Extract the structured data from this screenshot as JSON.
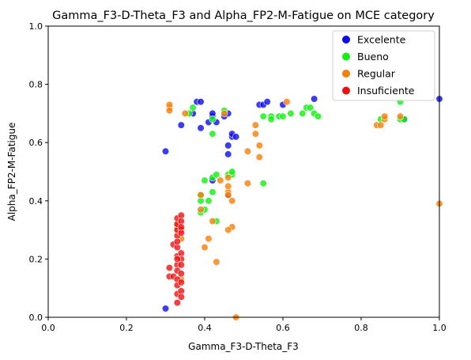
{
  "chart_data": {
    "type": "scatter",
    "title": "Gamma_F3-D-Theta_F3 and Alpha_FP2-M-Fatigue on MCE category",
    "xlabel": "Gamma_F3-D-Theta_F3",
    "ylabel": "Alpha_FP2-M-Fatigue",
    "xlim": [
      0,
      1
    ],
    "ylim": [
      0,
      1
    ],
    "xticks": [
      "0.0",
      "0.2",
      "0.4",
      "0.6",
      "0.8",
      "1.0"
    ],
    "yticks": [
      "0.0",
      "0.2",
      "0.4",
      "0.6",
      "0.8",
      "1.0"
    ],
    "grid": false,
    "legend_position": "top-right",
    "series": [
      {
        "name": "Excelente",
        "color": "#0b0bf0",
        "points": [
          [
            0.3,
            0.57
          ],
          [
            0.3,
            0.03
          ],
          [
            0.34,
            0.66
          ],
          [
            0.37,
            0.7
          ],
          [
            0.38,
            0.74
          ],
          [
            0.39,
            0.74
          ],
          [
            0.39,
            0.65
          ],
          [
            0.41,
            0.67
          ],
          [
            0.42,
            0.69
          ],
          [
            0.42,
            0.7
          ],
          [
            0.43,
            0.67
          ],
          [
            0.45,
            0.69
          ],
          [
            0.46,
            0.7
          ],
          [
            0.46,
            0.59
          ],
          [
            0.46,
            0.56
          ],
          [
            0.47,
            0.62
          ],
          [
            0.47,
            0.63
          ],
          [
            0.48,
            0.62
          ],
          [
            0.42,
            0.47
          ],
          [
            0.46,
            0.42
          ],
          [
            0.54,
            0.73
          ],
          [
            0.55,
            0.73
          ],
          [
            0.56,
            0.74
          ],
          [
            0.6,
            0.73
          ],
          [
            0.68,
            0.75
          ],
          [
            0.91,
            0.68
          ],
          [
            1.0,
            0.75
          ]
        ]
      },
      {
        "name": "Bueno",
        "color": "#12f012",
        "points": [
          [
            0.36,
            0.7
          ],
          [
            0.37,
            0.72
          ],
          [
            0.42,
            0.68
          ],
          [
            0.42,
            0.63
          ],
          [
            0.45,
            0.71
          ],
          [
            0.39,
            0.42
          ],
          [
            0.39,
            0.36
          ],
          [
            0.39,
            0.4
          ],
          [
            0.4,
            0.37
          ],
          [
            0.4,
            0.47
          ],
          [
            0.41,
            0.4
          ],
          [
            0.42,
            0.43
          ],
          [
            0.42,
            0.48
          ],
          [
            0.43,
            0.33
          ],
          [
            0.43,
            0.49
          ],
          [
            0.46,
            0.49
          ],
          [
            0.47,
            0.49
          ],
          [
            0.47,
            0.5
          ],
          [
            0.55,
            0.46
          ],
          [
            0.55,
            0.69
          ],
          [
            0.57,
            0.69
          ],
          [
            0.57,
            0.68
          ],
          [
            0.59,
            0.69
          ],
          [
            0.6,
            0.69
          ],
          [
            0.62,
            0.7
          ],
          [
            0.65,
            0.7
          ],
          [
            0.66,
            0.72
          ],
          [
            0.67,
            0.72
          ],
          [
            0.68,
            0.7
          ],
          [
            0.69,
            0.69
          ],
          [
            0.85,
            0.68
          ],
          [
            0.9,
            0.68
          ],
          [
            0.91,
            0.68
          ],
          [
            0.9,
            0.74
          ]
        ]
      },
      {
        "name": "Regular",
        "color": "#f57f08",
        "points": [
          [
            0.31,
            0.72
          ],
          [
            0.31,
            0.73
          ],
          [
            0.31,
            0.71
          ],
          [
            0.35,
            0.7
          ],
          [
            0.45,
            0.7
          ],
          [
            0.33,
            0.3
          ],
          [
            0.33,
            0.31
          ],
          [
            0.33,
            0.32
          ],
          [
            0.34,
            0.27
          ],
          [
            0.34,
            0.13
          ],
          [
            0.39,
            0.42
          ],
          [
            0.39,
            0.37
          ],
          [
            0.4,
            0.24
          ],
          [
            0.41,
            0.27
          ],
          [
            0.42,
            0.33
          ],
          [
            0.43,
            0.19
          ],
          [
            0.44,
            0.47
          ],
          [
            0.46,
            0.43
          ],
          [
            0.46,
            0.48
          ],
          [
            0.46,
            0.45
          ],
          [
            0.46,
            0.42
          ],
          [
            0.47,
            0.4
          ],
          [
            0.47,
            0.31
          ],
          [
            0.46,
            0.3
          ],
          [
            0.48,
            0.0
          ],
          [
            0.51,
            0.46
          ],
          [
            0.51,
            0.57
          ],
          [
            0.53,
            0.63
          ],
          [
            0.53,
            0.66
          ],
          [
            0.54,
            0.55
          ],
          [
            0.54,
            0.59
          ],
          [
            0.61,
            0.74
          ],
          [
            0.84,
            0.66
          ],
          [
            0.85,
            0.66
          ],
          [
            0.86,
            0.68
          ],
          [
            0.86,
            0.69
          ],
          [
            0.9,
            0.69
          ],
          [
            1.0,
            0.39
          ]
        ]
      },
      {
        "name": "Insuficiente",
        "color": "#f01010",
        "points": [
          [
            0.31,
            0.17
          ],
          [
            0.31,
            0.14
          ],
          [
            0.32,
            0.14
          ],
          [
            0.32,
            0.25
          ],
          [
            0.33,
            0.21
          ],
          [
            0.33,
            0.24
          ],
          [
            0.33,
            0.18
          ],
          [
            0.33,
            0.16
          ],
          [
            0.33,
            0.13
          ],
          [
            0.33,
            0.11
          ],
          [
            0.33,
            0.08
          ],
          [
            0.33,
            0.05
          ],
          [
            0.33,
            0.28
          ],
          [
            0.33,
            0.3
          ],
          [
            0.33,
            0.32
          ],
          [
            0.33,
            0.34
          ],
          [
            0.34,
            0.35
          ],
          [
            0.34,
            0.33
          ],
          [
            0.34,
            0.3
          ],
          [
            0.34,
            0.29
          ],
          [
            0.34,
            0.22
          ],
          [
            0.34,
            0.2
          ],
          [
            0.34,
            0.18
          ],
          [
            0.34,
            0.15
          ],
          [
            0.34,
            0.12
          ],
          [
            0.34,
            0.09
          ],
          [
            0.34,
            0.07
          ],
          [
            0.33,
            0.26
          ],
          [
            0.34,
            0.31
          ],
          [
            0.33,
            0.2
          ]
        ]
      }
    ]
  }
}
